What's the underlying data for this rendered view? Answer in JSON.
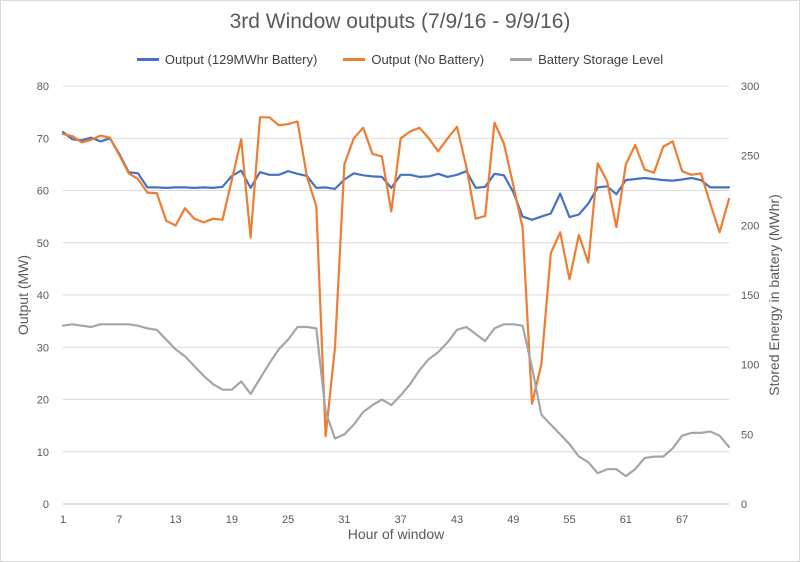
{
  "chart_data": {
    "type": "line",
    "title": "3rd Window outputs (7/9/16 - 9/9/16)",
    "xlabel": "Hour of window",
    "ylabel": "Output (MW)",
    "y2label": "Stored Energy in battery (MWhr)",
    "x": [
      1,
      2,
      3,
      4,
      5,
      6,
      7,
      8,
      9,
      10,
      11,
      12,
      13,
      14,
      15,
      16,
      17,
      18,
      19,
      20,
      21,
      22,
      23,
      24,
      25,
      26,
      27,
      28,
      29,
      30,
      31,
      32,
      33,
      34,
      35,
      36,
      37,
      38,
      39,
      40,
      41,
      42,
      43,
      44,
      45,
      46,
      47,
      48,
      49,
      50,
      51,
      52,
      53,
      54,
      55,
      56,
      57,
      58,
      59,
      60,
      61,
      62,
      63,
      64,
      65,
      66,
      67,
      68,
      69,
      70,
      71,
      72
    ],
    "xticks": [
      1,
      7,
      13,
      19,
      25,
      31,
      37,
      43,
      49,
      55,
      61,
      67
    ],
    "ylim": [
      0,
      80
    ],
    "yticks": [
      0,
      10,
      20,
      30,
      40,
      50,
      60,
      70,
      80
    ],
    "y2lim": [
      0,
      300
    ],
    "y2ticks": [
      0,
      50,
      100,
      150,
      200,
      250,
      300
    ],
    "grid": true,
    "legend_position": "top",
    "series": [
      {
        "name": "Output (129MWhr Battery)",
        "color": "#4472c4",
        "axis": "left",
        "values": [
          71.2,
          69.8,
          69.6,
          70.1,
          69.4,
          70,
          67,
          63.5,
          63.3,
          60.6,
          60.6,
          60.5,
          60.6,
          60.6,
          60.5,
          60.6,
          60.5,
          60.7,
          62.8,
          63.8,
          60.5,
          63.5,
          63,
          63,
          63.7,
          63.2,
          62.8,
          60.5,
          60.6,
          60.3,
          62.1,
          63.3,
          62.9,
          62.7,
          62.6,
          60.5,
          63,
          63,
          62.6,
          62.7,
          63.2,
          62.6,
          63,
          63.7,
          60.5,
          60.7,
          63.2,
          62.9,
          59.7,
          55,
          54.4,
          55,
          55.6,
          59.4,
          54.9,
          55.4,
          57.5,
          60.6,
          60.8,
          59.3,
          62,
          62.2,
          62.4,
          62.2,
          62,
          61.9,
          62.1,
          62.4,
          62,
          60.6,
          60.6,
          60.6
        ]
      },
      {
        "name": "Output (No Battery)",
        "color": "#ed7d31",
        "axis": "left",
        "values": [
          70.8,
          70.4,
          69.2,
          69.7,
          70.5,
          70.1,
          66.8,
          63.3,
          62.2,
          59.6,
          59.5,
          54.2,
          53.3,
          56.6,
          54.6,
          53.9,
          54.6,
          54.4,
          62,
          69.8,
          51,
          74,
          74,
          72.5,
          72.7,
          73.2,
          62.7,
          57,
          13,
          30,
          65,
          70,
          72,
          67,
          66.5,
          56,
          70,
          71.3,
          72,
          70,
          67.5,
          70,
          72.2,
          64.5,
          54.6,
          55.1,
          73,
          69,
          61,
          52.9,
          19.2,
          26.8,
          48,
          52,
          43,
          51.5,
          46.2,
          65.2,
          61.8,
          53,
          65,
          68.7,
          64,
          63.4,
          68.4,
          69.4,
          63.7,
          63,
          63.3,
          57.5,
          52,
          58.4
        ]
      },
      {
        "name": "Battery Storage Level",
        "color": "#a5a5a5",
        "axis": "right",
        "values": [
          128,
          129,
          128,
          127,
          129,
          129,
          129,
          129,
          128,
          126,
          125,
          118,
          111,
          106,
          99,
          92,
          86,
          82,
          82,
          88,
          79,
          90,
          101,
          111,
          118,
          127,
          127,
          126,
          66,
          47,
          50,
          57,
          66,
          71,
          75,
          71,
          78,
          86,
          96,
          104,
          109,
          116,
          125,
          127,
          122,
          117,
          126,
          129,
          129,
          128,
          98,
          64,
          57,
          50,
          43,
          34,
          30,
          22,
          25,
          25,
          20,
          25,
          33,
          34,
          34,
          40,
          49,
          51,
          51,
          52,
          49,
          41
        ]
      }
    ]
  }
}
